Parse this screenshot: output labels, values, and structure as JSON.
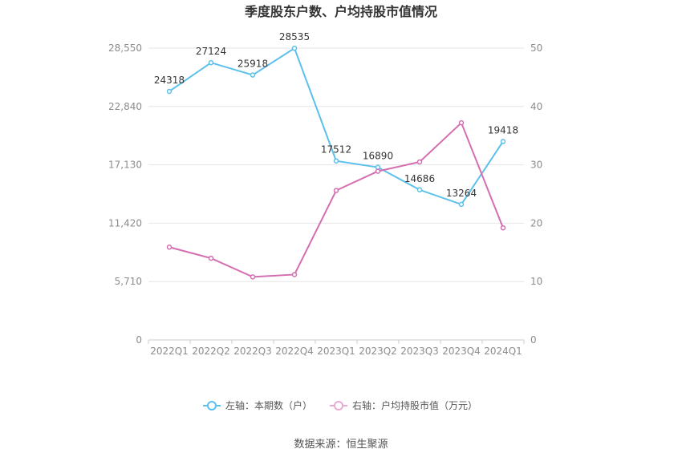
{
  "chart_data": {
    "type": "line",
    "title": "季度股东户数、户均持股市值情况",
    "categories": [
      "2022Q1",
      "2022Q2",
      "2022Q3",
      "2022Q4",
      "2023Q1",
      "2023Q2",
      "2023Q3",
      "2023Q4",
      "2024Q1"
    ],
    "left_axis": {
      "ticks": [
        "0",
        "5,710",
        "11,420",
        "17,130",
        "22,840",
        "28,550"
      ],
      "range": [
        0,
        28550
      ]
    },
    "right_axis": {
      "ticks": [
        "0",
        "10",
        "20",
        "30",
        "40",
        "50"
      ],
      "range": [
        0,
        50
      ]
    },
    "grid": true,
    "legend_position": "bottom",
    "series": [
      {
        "name": "左轴：本期数（户）",
        "axis": "left",
        "color": "#5bc0eb",
        "values": [
          24318,
          27124,
          25918,
          28535,
          17512,
          16890,
          14686,
          13264,
          19418
        ],
        "labels": [
          "24318",
          "27124",
          "25918",
          "28535",
          "17512",
          "16890",
          "14686",
          "13264",
          "19418"
        ]
      },
      {
        "name": "右轴：户均持股市值（万元）",
        "axis": "right",
        "color": "#d56eb1",
        "values": [
          15.9,
          14.0,
          10.8,
          11.2,
          25.6,
          28.9,
          30.5,
          37.2,
          19.2
        ]
      }
    ],
    "source": "数据来源：恒生聚源"
  }
}
